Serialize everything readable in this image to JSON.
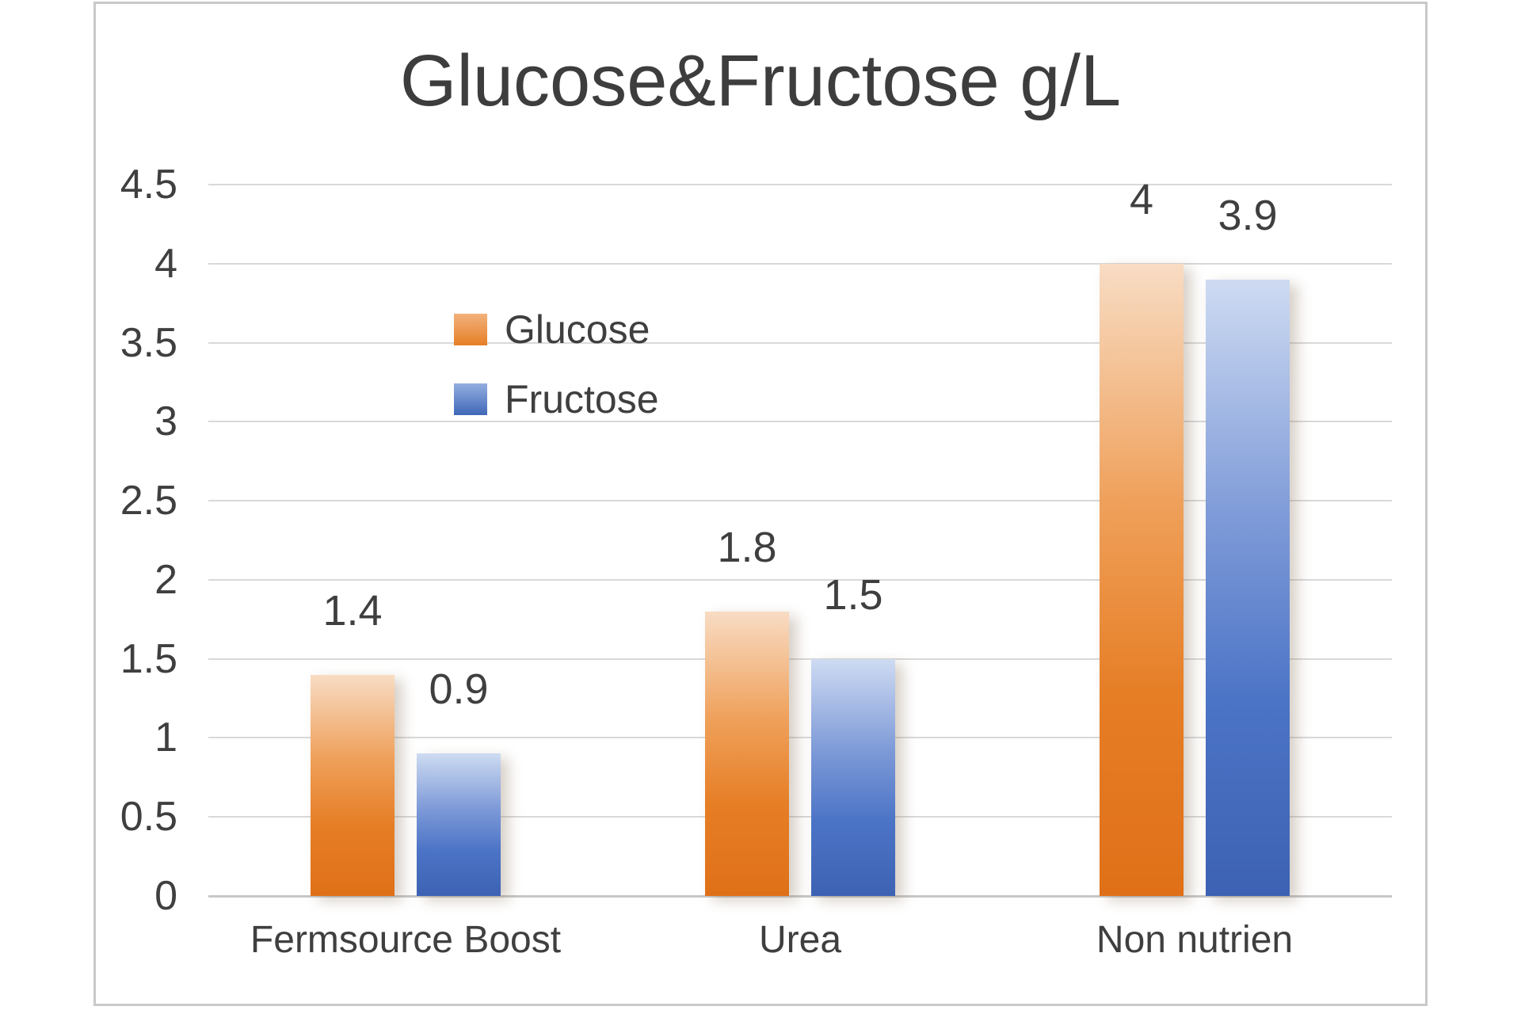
{
  "title": "Glucose&Fructose g/L",
  "legend": {
    "items": [
      {
        "label": "Glucose",
        "series_key": "glucose",
        "color": "#E2741C"
      },
      {
        "label": "Fructose",
        "series_key": "fructose",
        "color": "#4472C4"
      }
    ]
  },
  "chart_data": {
    "type": "bar",
    "title": "Glucose&Fructose g/L",
    "categories": [
      "Fermsource Boost",
      "Urea",
      "Non nutrien"
    ],
    "series": [
      {
        "name": "Glucose",
        "key": "glucose",
        "values": [
          1.4,
          1.8,
          4
        ],
        "value_labels": [
          "1.4",
          "1.8",
          "4"
        ],
        "color": "#E2741C"
      },
      {
        "name": "Fructose",
        "key": "fructose",
        "values": [
          0.9,
          1.5,
          3.9
        ],
        "value_labels": [
          "0.9",
          "1.5",
          "3.9"
        ],
        "color": "#4472C4"
      }
    ],
    "xlabel": "",
    "ylabel": "",
    "ylim": [
      0,
      4.5
    ],
    "ytick_step": 0.5,
    "ytick_labels": [
      "4.5",
      "4",
      "3.5",
      "3",
      "2.5",
      "2",
      "1.5",
      "1",
      "0.5",
      "0"
    ],
    "grid": true,
    "gridline_color": "#D9D9D9",
    "legend_position": "inside-upper-left",
    "data_labels": "above-bars",
    "background": "#FFFFFF"
  }
}
